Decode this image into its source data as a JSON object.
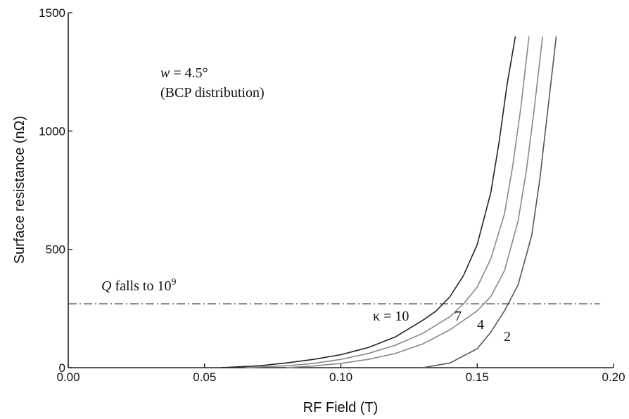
{
  "chart_data": {
    "type": "line",
    "title": "",
    "xlabel": "RF Field (T)",
    "ylabel": "Surface resistance (nΩ)",
    "xlim": [
      0.0,
      0.2
    ],
    "ylim": [
      0,
      1500
    ],
    "xticks": [
      "0.00",
      "0.05",
      "0.10",
      "0.15",
      "0.20"
    ],
    "yticks": [
      "0",
      "500",
      "1000",
      "1500"
    ],
    "grid": false,
    "annotations": {
      "parameter_symbol": "w",
      "parameter_value": " = 4.5°",
      "distribution": "(BCP distribution)",
      "threshold_prefix": "Q",
      "threshold_text": " falls to 10",
      "threshold_exponent": "9"
    },
    "threshold": {
      "y": 270
    },
    "series": [
      {
        "label": "κ = 10",
        "color": "#222222",
        "x": [
          0.056,
          0.07,
          0.08,
          0.09,
          0.1,
          0.11,
          0.12,
          0.13,
          0.135,
          0.14,
          0.145,
          0.15,
          0.155,
          0.158,
          0.161,
          0.164
        ],
        "y": [
          0,
          8,
          20,
          35,
          55,
          85,
          130,
          200,
          240,
          300,
          390,
          520,
          740,
          950,
          1200,
          1400
        ]
      },
      {
        "label": "7",
        "color": "#888888",
        "x": [
          0.065,
          0.08,
          0.09,
          0.1,
          0.11,
          0.12,
          0.13,
          0.14,
          0.145,
          0.15,
          0.155,
          0.16,
          0.163,
          0.166,
          0.169
        ],
        "y": [
          0,
          8,
          18,
          35,
          60,
          95,
          145,
          215,
          270,
          340,
          460,
          650,
          850,
          1100,
          1400
        ]
      },
      {
        "label": "4",
        "color": "#888888",
        "x": [
          0.08,
          0.09,
          0.1,
          0.11,
          0.12,
          0.13,
          0.14,
          0.15,
          0.155,
          0.16,
          0.165,
          0.168,
          0.171,
          0.174
        ],
        "y": [
          0,
          7,
          18,
          35,
          60,
          100,
          160,
          240,
          300,
          410,
          620,
          830,
          1100,
          1400
        ]
      },
      {
        "label": "2",
        "color": "#555555",
        "x": [
          0.13,
          0.14,
          0.15,
          0.155,
          0.16,
          0.165,
          0.17,
          0.173,
          0.176,
          0.179
        ],
        "y": [
          0,
          20,
          80,
          150,
          240,
          350,
          560,
          800,
          1100,
          1400
        ]
      }
    ]
  }
}
